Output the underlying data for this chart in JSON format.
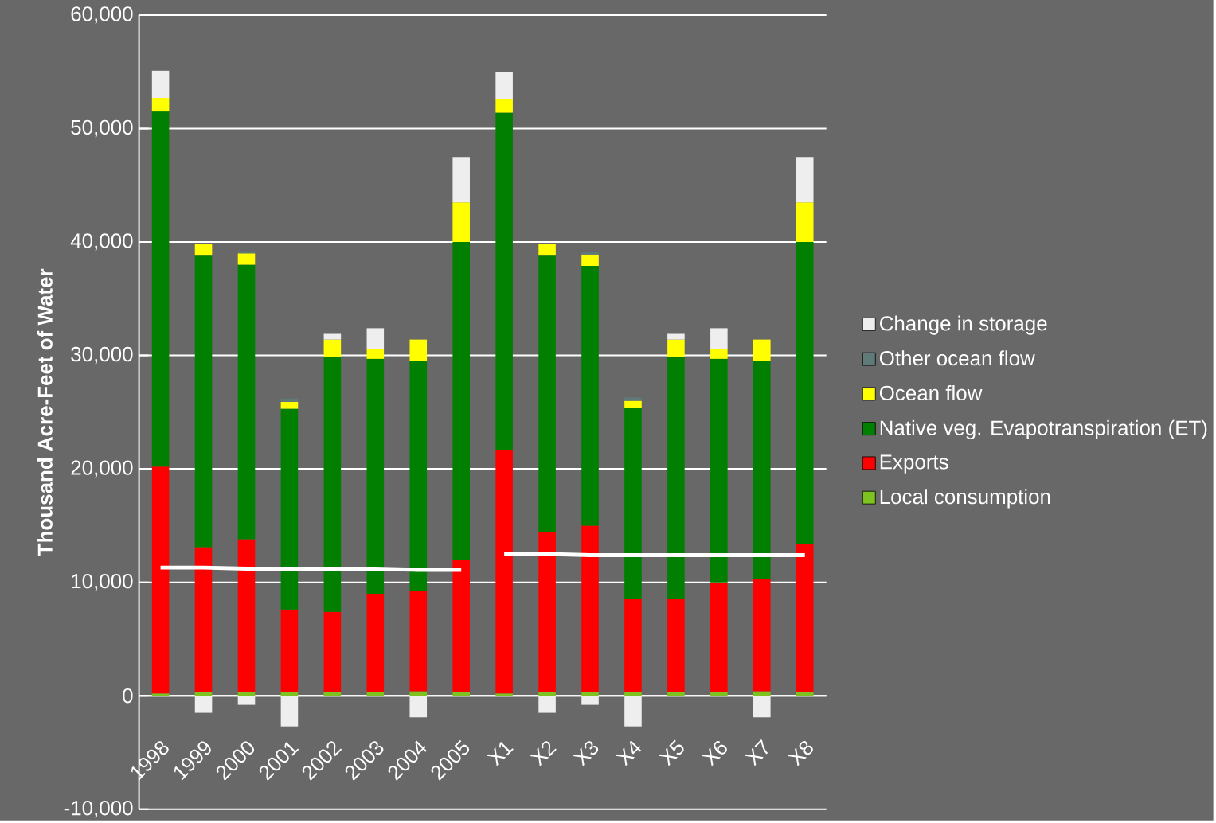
{
  "chart_data": {
    "type": "bar",
    "stacked": true,
    "ylabel": "Thousand Acre-Feet of Water",
    "categories": [
      "1998",
      "1999",
      "2000",
      "2001",
      "2002",
      "2003",
      "2004",
      "2005",
      "X1",
      "X2",
      "X3",
      "X4",
      "X5",
      "X6",
      "X7",
      "X8"
    ],
    "ylim": [
      -10000,
      60000
    ],
    "yticks": [
      {
        "value": -10000,
        "label": "-10,000"
      },
      0,
      {
        "value": 10000,
        "label": "10,000"
      },
      {
        "value": 20000,
        "label": "20,000"
      },
      {
        "value": 30000,
        "label": "30,000"
      },
      {
        "value": 40000,
        "label": "40,000"
      },
      {
        "value": 50000,
        "label": "50,000"
      },
      {
        "value": 60000,
        "label": "60,000"
      }
    ],
    "grid": "y",
    "legend": "right",
    "series": [
      {
        "name": "Local consumption",
        "color": "#7dc21e",
        "values": [
          200,
          300,
          300,
          300,
          300,
          300,
          400,
          300,
          200,
          300,
          300,
          300,
          300,
          300,
          400,
          300
        ]
      },
      {
        "name": "Exports",
        "color": "#ff0000",
        "values": [
          20000,
          12800,
          13500,
          7300,
          7100,
          8700,
          8800,
          11700,
          21500,
          14100,
          14700,
          8200,
          8200,
          9700,
          9900,
          13100
        ]
      },
      {
        "name": "Native veg. Evapotranspiration (ET)",
        "color": "#007f00",
        "values": [
          31300,
          25700,
          24200,
          17700,
          22500,
          20700,
          20300,
          28000,
          29700,
          24400,
          22900,
          16900,
          21400,
          19700,
          19200,
          26600
        ]
      },
      {
        "name": "Ocean flow",
        "color": "#ffff00",
        "values": [
          1200,
          1000,
          1000,
          600,
          1500,
          900,
          1900,
          3500,
          1200,
          1000,
          1000,
          600,
          1500,
          900,
          1900,
          3500
        ]
      },
      {
        "name": "Other ocean flow",
        "color": "#5f7a78",
        "values": [
          null,
          0,
          200,
          300,
          0,
          0,
          0,
          0,
          null,
          0,
          200,
          300,
          0,
          0,
          0,
          0
        ]
      },
      {
        "name": "Change in storage",
        "color": "#eeeeee",
        "values": [
          2400,
          -1500,
          -800,
          -2700,
          500,
          1800,
          -1900,
          4000,
          2400,
          -1500,
          -800,
          -2700,
          500,
          1800,
          -1900,
          4000
        ]
      },
      {
        "type": "line",
        "color": "#ffffff",
        "values": [
          11300,
          11300,
          11200,
          11200,
          11200,
          11200,
          11100,
          11100,
          null,
          null,
          null,
          null,
          null,
          null,
          null,
          null
        ]
      },
      {
        "type": "line",
        "color": "#ffffff",
        "values": [
          null,
          null,
          null,
          null,
          null,
          null,
          null,
          null,
          12500,
          12500,
          12400,
          12400,
          12400,
          12400,
          12400,
          12400
        ]
      }
    ]
  }
}
